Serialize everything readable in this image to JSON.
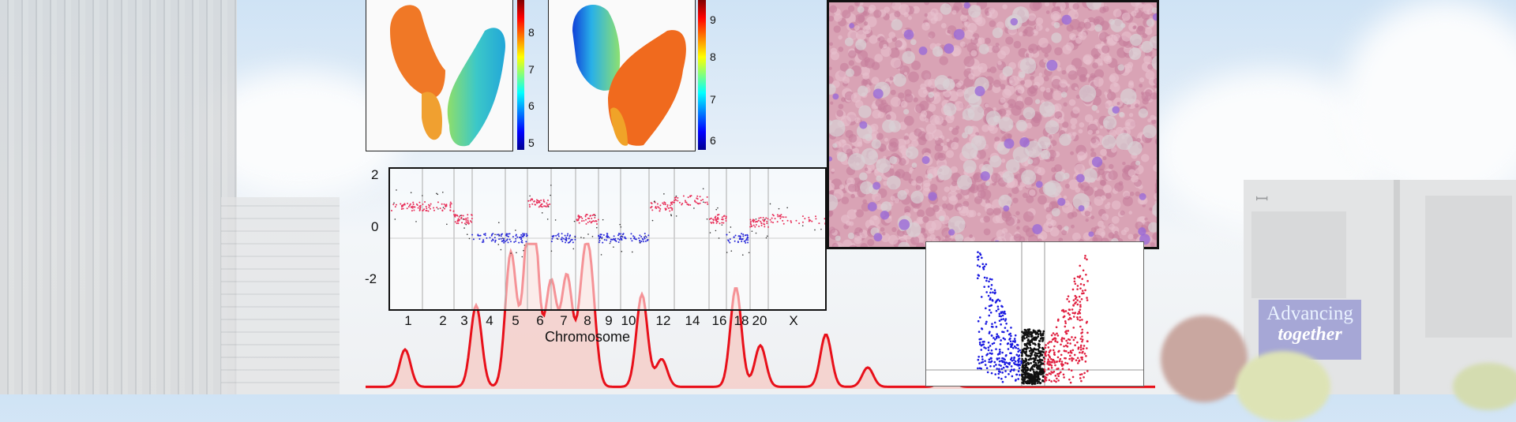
{
  "background": {
    "sign": {
      "line1": "Advancing",
      "line2": "together"
    },
    "colors": {
      "sky": "#cfe3f5",
      "building": "#d6d8da",
      "sign": "#a6a7d6"
    }
  },
  "umap_left": {
    "colorbar_ticks": [
      "8",
      "7",
      "6",
      "5"
    ],
    "colormap": "jet"
  },
  "umap_right": {
    "colorbar_ticks": [
      "9",
      "8",
      "7",
      "6"
    ],
    "colormap": "jet"
  },
  "chart_data": [
    {
      "type": "scatter",
      "xlabel": "Chromosome",
      "ylabel": "",
      "ylim": [
        -2.2,
        2.2
      ],
      "yticks": [
        "2",
        "0",
        "-2"
      ],
      "categories": [
        "1",
        "2",
        "3",
        "4",
        "5",
        "6",
        "7",
        "8",
        "9",
        "10",
        "12",
        "14",
        "16",
        "18",
        "20",
        "X"
      ],
      "segment_colors": {
        "gain": "#e8305a",
        "neutral": "#2a2ad8",
        "other": "#333333"
      },
      "segment_levels": [
        1.0,
        1.0,
        0.6,
        0.0,
        0.0,
        1.1,
        0.0,
        0.6,
        0.0,
        0.0,
        1.0,
        1.2,
        0.6,
        0.0,
        0.5,
        0.6
      ]
    },
    {
      "type": "area",
      "color": "#e8101a",
      "fill": "#f6c9c4",
      "peaks": [
        {
          "pos": 0.05,
          "height": 0.27
        },
        {
          "pos": 0.14,
          "height": 0.59
        },
        {
          "pos": 0.184,
          "height": 0.97
        },
        {
          "pos": 0.205,
          "height": 0.74
        },
        {
          "pos": 0.213,
          "height": 1.0
        },
        {
          "pos": 0.235,
          "height": 0.76
        },
        {
          "pos": 0.255,
          "height": 0.8
        },
        {
          "pos": 0.276,
          "height": 0.66
        },
        {
          "pos": 0.285,
          "height": 0.65
        },
        {
          "pos": 0.35,
          "height": 0.2
        },
        {
          "pos": 0.35,
          "height": 0.19
        },
        {
          "pos": 0.35,
          "height": 0.28
        },
        {
          "pos": 0.375,
          "height": 0.2
        },
        {
          "pos": 0.469,
          "height": 0.72
        },
        {
          "pos": 0.5,
          "height": 0.3
        },
        {
          "pos": 0.583,
          "height": 0.38
        },
        {
          "pos": 0.636,
          "height": 0.14
        },
        {
          "pos": 0.736,
          "height": 0.19
        }
      ]
    },
    {
      "type": "scatter",
      "series": [
        {
          "color": "#1a1ae0"
        },
        {
          "color": "#e02040"
        },
        {
          "color": "#111111"
        }
      ]
    }
  ]
}
